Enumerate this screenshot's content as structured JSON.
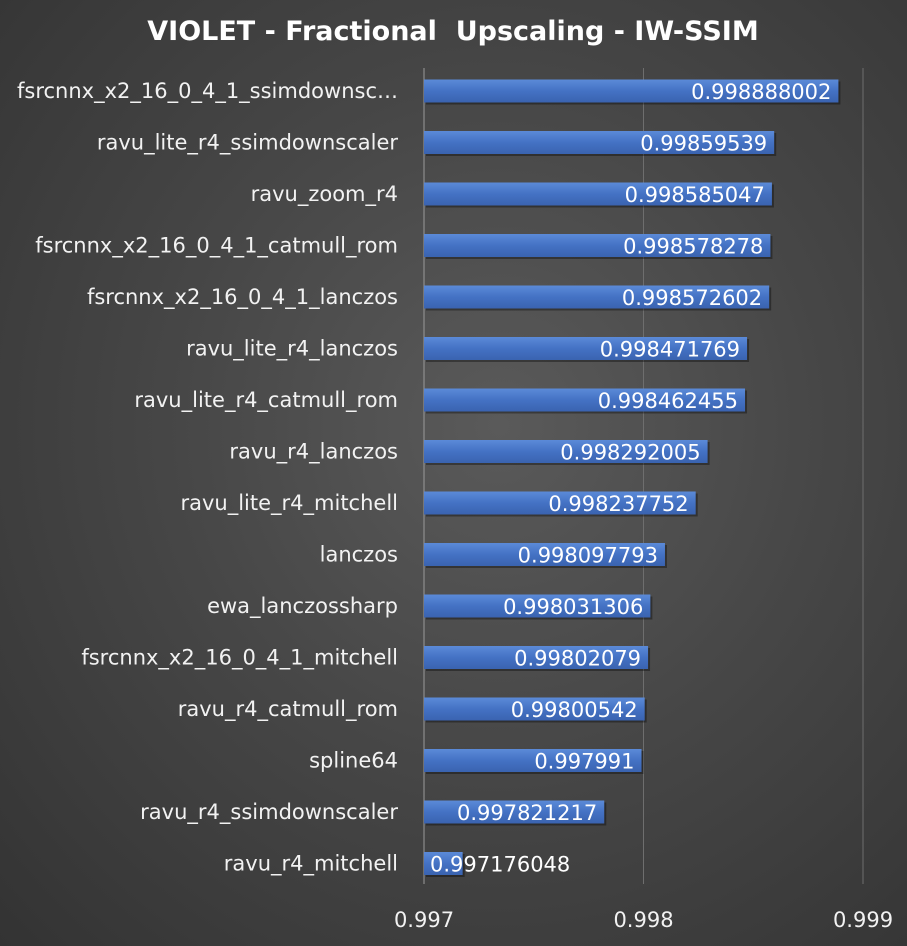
{
  "chart_data": {
    "type": "bar",
    "orientation": "horizontal",
    "title": "VIOLET - Fractional  Upscaling - IW-SSIM",
    "categories": [
      "fsrcnnx_x2_16_0_4_1_ssimdownsc…",
      "ravu_lite_r4_ssimdownscaler",
      "ravu_zoom_r4",
      "fsrcnnx_x2_16_0_4_1_catmull_rom",
      "fsrcnnx_x2_16_0_4_1_lanczos",
      "ravu_lite_r4_lanczos",
      "ravu_lite_r4_catmull_rom",
      "ravu_r4_lanczos",
      "ravu_lite_r4_mitchell",
      "lanczos",
      "ewa_lanczossharp",
      "fsrcnnx_x2_16_0_4_1_mitchell",
      "ravu_r4_catmull_rom",
      "spline64",
      "ravu_r4_ssimdownscaler",
      "ravu_r4_mitchell"
    ],
    "values": [
      0.998888002,
      0.99859539,
      0.998585047,
      0.998578278,
      0.998572602,
      0.998471769,
      0.998462455,
      0.998292005,
      0.998237752,
      0.998097793,
      0.998031306,
      0.99802079,
      0.99800542,
      0.997991,
      0.997821217,
      0.997176048
    ],
    "value_labels": [
      "0.998888002",
      "0.99859539",
      "0.998585047",
      "0.998578278",
      "0.998572602",
      "0.998471769",
      "0.998462455",
      "0.998292005",
      "0.998237752",
      "0.998097793",
      "0.998031306",
      "0.99802079",
      "0.99800542",
      "0.997991",
      "0.997821217",
      "0.997176048"
    ],
    "xlim": [
      0.997,
      0.999
    ],
    "x_ticks": [
      "0.997",
      "0.998",
      "0.999"
    ],
    "grid": true,
    "legend": "none",
    "bar_color": "#4472c4",
    "background": "#474747"
  }
}
